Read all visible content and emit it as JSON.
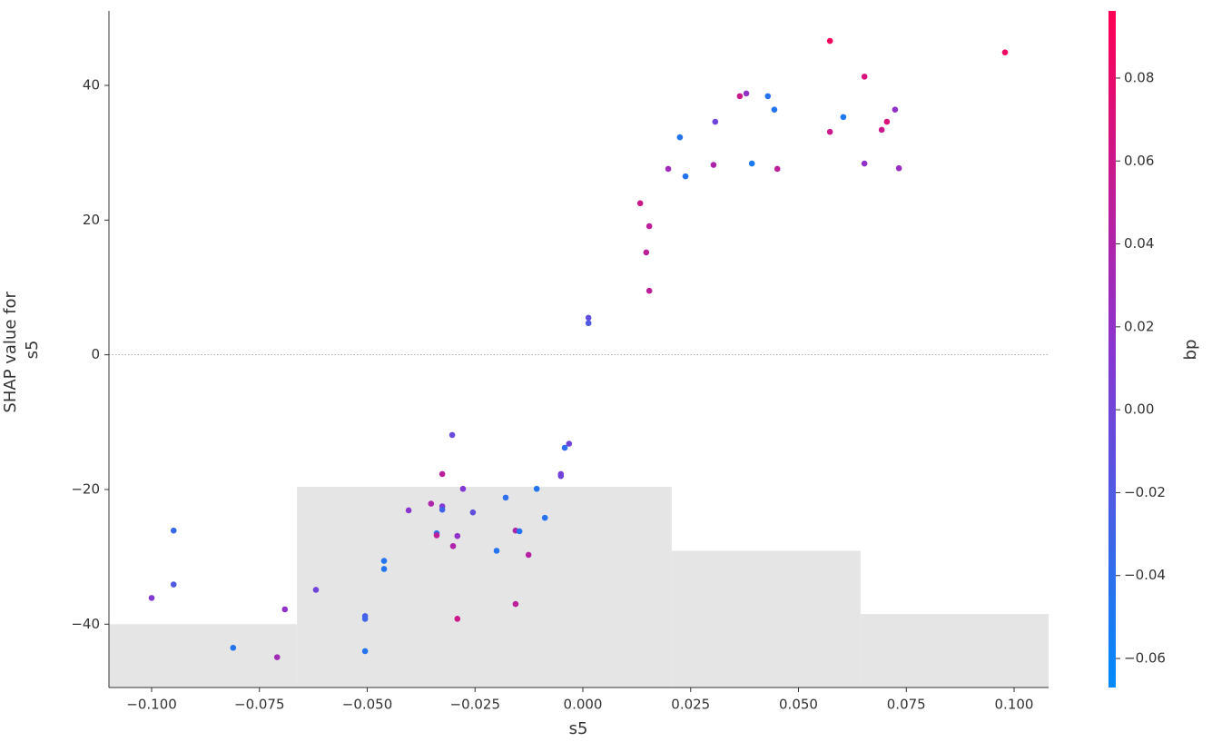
{
  "chart_data": {
    "type": "scatter",
    "xlabel": "s5",
    "ylabel": [
      "SHAP value for",
      "s5"
    ],
    "colorbar_label": "bp",
    "xlim": [
      -0.1099,
      0.108
    ],
    "ylim": [
      -49.4,
      51.06
    ],
    "clim": [
      -0.067,
      0.0962
    ],
    "colormap": [
      "#008bfb",
      "#8a35d0",
      "#ff0052"
    ],
    "hline": 0,
    "xticks": [
      {
        "value": -0.1,
        "label": "−0.100"
      },
      {
        "value": -0.075,
        "label": "−0.075"
      },
      {
        "value": -0.05,
        "label": "−0.050"
      },
      {
        "value": -0.025,
        "label": "−0.025"
      },
      {
        "value": 0,
        "label": "0.000"
      },
      0.025,
      {
        "value": 0.05,
        "label": "0.050"
      },
      0.075,
      {
        "value": 0.1,
        "label": "0.100"
      }
    ],
    "yticks": [
      {
        "value": -40,
        "label": "−40"
      },
      {
        "value": -20,
        "label": "−20"
      },
      0,
      20,
      40
    ],
    "cticks": [
      {
        "value": -0.06,
        "label": "−0.06"
      },
      {
        "value": -0.04,
        "label": "−0.04"
      },
      {
        "value": -0.02,
        "label": "−0.02"
      },
      {
        "value": 0,
        "label": "0.00"
      },
      0.02,
      0.04,
      0.06,
      0.08
    ],
    "hist_bins": [
      -0.1099,
      -0.0663,
      0.0206,
      0.0644,
      0.108
    ],
    "hist_tops": [
      -40.0,
      -19.6,
      -29.1,
      -38.5
    ],
    "x": [
      0.0573,
      0.0979,
      0.0653,
      0.0379,
      0.0364,
      0.0429,
      0.0444,
      0.0724,
      0.0604,
      0.0307,
      0.0705,
      0.0573,
      0.0693,
      0.0225,
      0.0653,
      0.0392,
      0.0303,
      0.0733,
      0.0451,
      0.0198,
      0.0238,
      0.0133,
      0.0154,
      0.0147,
      0.0154,
      0.0013,
      0.0013,
      -0.0303,
      -0.0032,
      -0.0042,
      -0.0326,
      -0.0051,
      -0.0051,
      -0.0107,
      -0.0278,
      -0.0179,
      -0.0352,
      -0.0326,
      -0.0326,
      -0.0404,
      -0.0255,
      -0.0088,
      -0.0949,
      -0.0156,
      -0.0147,
      -0.0339,
      -0.0339,
      -0.0291,
      -0.0301,
      -0.02,
      -0.0126,
      -0.0461,
      -0.0461,
      -0.0949,
      -0.0619,
      -0.1,
      -0.0156,
      -0.0691,
      -0.0505,
      -0.0505,
      -0.0291,
      -0.0811,
      -0.0505,
      -0.0709
    ],
    "y": [
      46.6,
      44.9,
      41.3,
      38.8,
      38.4,
      38.4,
      36.4,
      36.4,
      35.3,
      34.6,
      34.6,
      33.1,
      33.4,
      32.3,
      28.4,
      28.4,
      28.2,
      27.7,
      27.6,
      27.6,
      26.5,
      22.5,
      19.1,
      15.2,
      9.5,
      5.5,
      4.7,
      -11.9,
      -13.2,
      -13.8,
      -17.7,
      -17.7,
      -18.0,
      -19.9,
      -19.9,
      -21.2,
      -22.1,
      -22.5,
      -23.0,
      -23.1,
      -23.4,
      -24.2,
      -26.1,
      -26.1,
      -26.2,
      -26.5,
      -26.8,
      -26.9,
      -28.4,
      -29.1,
      -29.7,
      -30.6,
      -31.8,
      -34.1,
      -34.9,
      -36.1,
      -37.0,
      -37.8,
      -38.8,
      -39.2,
      -39.2,
      -43.5,
      -44.0,
      -44.9
    ],
    "c": [
      0.09,
      0.085,
      0.07,
      0.02,
      0.06,
      -0.045,
      -0.045,
      0.02,
      -0.05,
      0.0,
      0.07,
      0.06,
      0.06,
      -0.045,
      0.02,
      -0.05,
      0.04,
      0.025,
      0.05,
      0.03,
      -0.045,
      0.06,
      0.05,
      0.05,
      0.05,
      -0.01,
      -0.02,
      -0.005,
      0.0,
      -0.04,
      0.05,
      0.005,
      0.0,
      -0.045,
      0.01,
      -0.04,
      0.04,
      0.01,
      -0.03,
      0.015,
      -0.01,
      -0.045,
      -0.035,
      0.04,
      -0.045,
      -0.04,
      0.05,
      0.02,
      0.04,
      -0.045,
      0.045,
      -0.045,
      -0.045,
      -0.02,
      0.0,
      0.01,
      0.05,
      0.02,
      -0.025,
      -0.03,
      0.06,
      -0.045,
      -0.045,
      0.03
    ]
  }
}
